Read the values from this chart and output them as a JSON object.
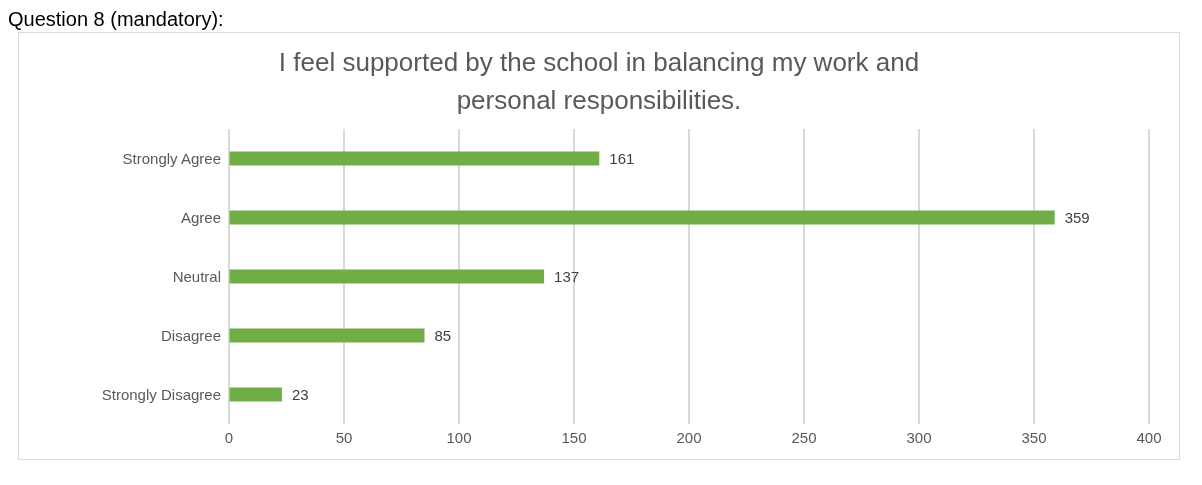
{
  "chart_data": {
    "type": "bar",
    "orientation": "horizontal",
    "title": "I feel supported by the school in balancing my work and personal responsibilities.",
    "annotations": [
      "Question 8 (mandatory):"
    ],
    "categories": [
      "Strongly Agree",
      "Agree",
      "Neutral",
      "Disagree",
      "Strongly Disagree"
    ],
    "values": [
      161,
      359,
      137,
      85,
      23
    ],
    "color": "#70ad47",
    "xlim": [
      0,
      400
    ],
    "xticks": [
      0,
      50,
      100,
      150,
      200,
      250,
      300,
      350,
      400
    ],
    "grid": "x",
    "data_labels": true
  }
}
